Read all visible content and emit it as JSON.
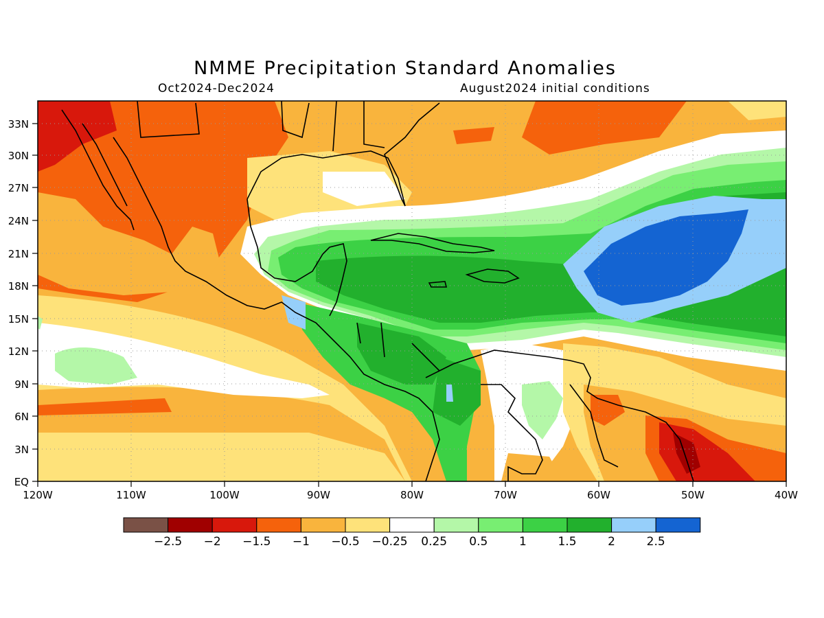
{
  "header": {
    "title": "NMME Precipitation Standard Anomalies",
    "period": "Oct2024-Dec2024",
    "init": "August2024 initial conditions"
  },
  "axes": {
    "lat_labels": [
      "33N",
      "30N",
      "27N",
      "24N",
      "21N",
      "18N",
      "15N",
      "12N",
      "9N",
      "6N",
      "3N",
      "EQ"
    ],
    "lon_labels": [
      "120W",
      "110W",
      "100W",
      "90W",
      "80W",
      "70W",
      "60W",
      "50W",
      "40W"
    ]
  },
  "colorbar": {
    "colors": [
      "#7a5146",
      "#a00000",
      "#d8180c",
      "#f5620c",
      "#f9b43d",
      "#fee27a",
      "#ffffff",
      "#b4f7a8",
      "#78ee72",
      "#3cd145",
      "#22b02d",
      "#96cffa",
      "#1464d2"
    ],
    "labels": [
      "-2.5",
      "-2",
      "-1.5",
      "-1",
      "-0.5",
      "-0.25",
      "0.25",
      "0.5",
      "1",
      "1.5",
      "2",
      "2.5"
    ]
  },
  "map": {
    "lat_range": [
      0,
      35
    ],
    "lon_range": [
      -120,
      -40
    ],
    "grid": "dotted"
  }
}
